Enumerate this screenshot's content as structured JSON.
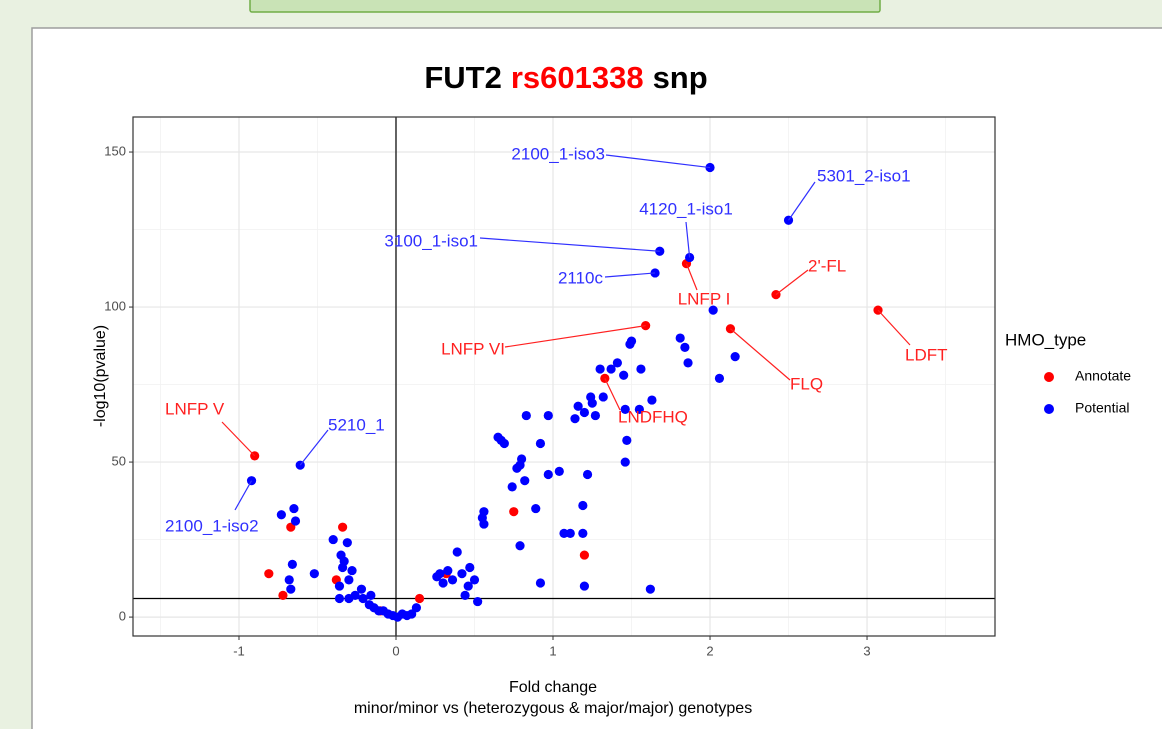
{
  "chart_data": {
    "type": "scatter",
    "title_parts": [
      {
        "text": "FUT2",
        "color": "#000000"
      },
      {
        "text": "rs601338",
        "color": "#ff0000"
      },
      {
        "text": "snp",
        "color": "#000000"
      }
    ],
    "xlabel": "Fold change",
    "xlabel2": "minor/minor vs (heterozygous & major/major) genotypes",
    "ylabel": "-log10(pvalue)",
    "legend_title": "HMO_type",
    "xlim": [
      -1.675,
      3.815
    ],
    "ylim": [
      -6.1,
      161.3
    ],
    "xticks": [
      -1,
      0,
      1,
      2,
      3
    ],
    "yticks": [
      0,
      50,
      100,
      150
    ],
    "grid": true,
    "hline": 6,
    "vline": 0,
    "series": [
      {
        "name": "Annotate",
        "color": "#ff0000",
        "label_color": "#ff2020",
        "x": [
          -0.9,
          -0.81,
          -0.72,
          -0.67,
          -0.34,
          -0.38,
          -0.1,
          0.15,
          0.32,
          0.75,
          1.2,
          1.33,
          1.59,
          1.85,
          2.13,
          2.42,
          3.07
        ],
        "y": [
          52,
          14,
          7,
          29,
          29,
          12,
          2,
          6,
          14,
          34,
          20,
          77,
          94,
          114,
          93,
          104,
          99
        ],
        "labels": [
          "LNFP V",
          null,
          null,
          null,
          null,
          null,
          null,
          null,
          null,
          null,
          null,
          "LNDFHQ",
          "LNFP VI",
          "LNFP I",
          "FLQ",
          "2'-FL",
          "LDFT"
        ]
      },
      {
        "name": "Potential",
        "color": "#0000ff",
        "label_color": "#3030ff",
        "x": [
          2.0,
          2.5,
          1.87,
          1.68,
          1.65,
          -0.61,
          -0.92,
          -0.73,
          -0.65,
          -0.64,
          -0.66,
          -0.68,
          -0.67,
          -0.52,
          -0.4,
          -0.35,
          -0.33,
          -0.31,
          -0.28,
          -0.34,
          -0.36,
          -0.36,
          -0.3,
          -0.26,
          -0.22,
          -0.17,
          -0.14,
          -0.11,
          -0.08,
          -0.05,
          -0.02,
          0.01,
          0.04,
          0.07,
          0.1,
          0.13,
          -0.16,
          -0.21,
          -0.3,
          0.26,
          0.28,
          0.3,
          0.33,
          0.36,
          0.39,
          0.42,
          0.44,
          0.47,
          0.5,
          0.52,
          0.46,
          0.55,
          0.56,
          0.56,
          0.65,
          0.67,
          0.69,
          0.74,
          0.77,
          0.79,
          0.8,
          0.82,
          0.83,
          0.92,
          0.97,
          0.97,
          0.92,
          1.04,
          1.07,
          1.11,
          1.19,
          1.19,
          1.22,
          1.2,
          1.14,
          1.16,
          1.24,
          1.25,
          1.27,
          1.3,
          1.32,
          1.37,
          1.41,
          1.45,
          1.46,
          1.49,
          1.46,
          1.47,
          1.5,
          1.56,
          1.63,
          1.62,
          1.81,
          1.84,
          1.86,
          2.02,
          2.06,
          2.16,
          1.2,
          1.55,
          0.79,
          0.89
        ],
        "y": [
          145,
          128,
          116,
          118,
          111,
          49,
          44,
          33,
          35,
          31,
          17,
          12,
          9,
          14,
          25,
          20,
          18,
          24,
          15,
          16,
          10,
          6,
          6,
          7,
          9,
          4,
          3,
          2,
          2,
          1,
          0.5,
          0,
          1,
          0.5,
          1,
          3,
          7,
          6,
          12,
          13,
          14,
          11,
          15,
          12,
          21,
          14,
          7,
          16,
          12,
          5,
          10,
          32,
          30,
          34,
          58,
          57,
          56,
          42,
          48,
          49,
          51,
          44,
          65,
          56,
          65,
          46,
          11,
          47,
          27,
          27,
          27,
          36,
          46,
          66,
          64,
          68,
          71,
          69,
          65,
          80,
          71,
          80,
          82,
          78,
          67,
          88,
          50,
          57,
          89,
          80,
          70,
          9,
          90,
          87,
          82,
          99,
          77,
          84,
          10,
          67,
          23,
          35
        ],
        "labels": [
          "2100_1-iso3",
          "5301_2-iso1",
          "4120_1-iso1",
          "3100_1-iso1",
          "2110c",
          "5210_1",
          "2100_1-iso2",
          null,
          null,
          null,
          null,
          null,
          null,
          null,
          null,
          null,
          null,
          null,
          null,
          null,
          null,
          null,
          null,
          null,
          null,
          null,
          null,
          null,
          null,
          null,
          null,
          null,
          null,
          null,
          null,
          null,
          null,
          null,
          null,
          null,
          null,
          null,
          null,
          null,
          null,
          null,
          null,
          null,
          null,
          null,
          null,
          null,
          null,
          null,
          null,
          null,
          null,
          null,
          null,
          null,
          null,
          null,
          null,
          null,
          null,
          null,
          null,
          null,
          null,
          null,
          null,
          null,
          null,
          null,
          null,
          null,
          null,
          null,
          null,
          null,
          null,
          null,
          null,
          null,
          null,
          null,
          null,
          null,
          null,
          null,
          null,
          null,
          null,
          null,
          null,
          null,
          null,
          null,
          null,
          null,
          null
        ]
      }
    ]
  }
}
